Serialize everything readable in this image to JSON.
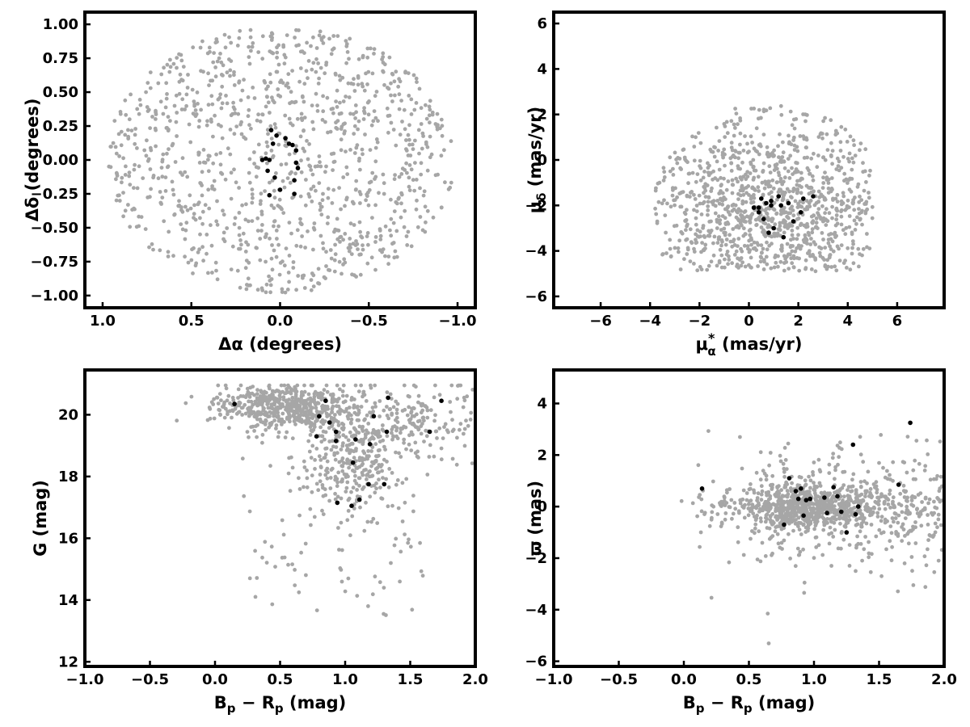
{
  "chart_data": [
    {
      "type": "scatter",
      "xlabel": "Δα (degrees)",
      "ylabel": "Δδ (degrees)",
      "xlim": [
        1.1,
        -1.1
      ],
      "ylim": [
        -1.09,
        1.09
      ],
      "x_ticks": [
        1.0,
        0.5,
        0.0,
        -0.5,
        -1.0
      ],
      "x_tick_labels": [
        "1.0",
        "0.5",
        "0.0",
        "−0.5",
        "−1.0"
      ],
      "y_ticks": [
        -1.0,
        -0.75,
        -0.5,
        -0.25,
        0.0,
        0.25,
        0.5,
        0.75,
        1.0
      ],
      "y_tick_labels": [
        "−1.00",
        "−0.75",
        "−0.50",
        "−0.25",
        "0.00",
        "0.25",
        "0.50",
        "0.75",
        "1.00"
      ],
      "grid": false,
      "colors": {
        "field": "#a6a6a6",
        "member": "#000000"
      },
      "field": {
        "distribution": "disk",
        "count": 1100,
        "cx": 0.0,
        "cy": 0.0,
        "radius": 0.98
      },
      "members": {
        "x": [
          0.05,
          0.02,
          0.04,
          -0.03,
          0.06,
          -0.05,
          -0.07,
          -0.09,
          -0.09,
          0.08,
          0.1,
          0.0,
          -0.08,
          0.03,
          -0.1,
          0.06,
          0.07,
          -0.08
        ],
        "y": [
          0.22,
          0.18,
          0.12,
          0.16,
          0.0,
          0.12,
          0.11,
          0.07,
          -0.02,
          0.01,
          0.0,
          -0.22,
          -0.15,
          -0.13,
          -0.06,
          -0.26,
          -0.08,
          -0.25
        ]
      }
    },
    {
      "type": "scatter",
      "xlabel": "μ*α (mas/yr)",
      "ylabel": "μδ (mas/yr)",
      "xlim": [
        -7.9,
        7.9
      ],
      "ylim": [
        -6.5,
        6.5
      ],
      "x_ticks": [
        -6,
        -4,
        -2,
        0,
        2,
        4,
        6
      ],
      "x_tick_labels": [
        "−6",
        "−4",
        "−2",
        "0",
        "2",
        "4",
        "6"
      ],
      "y_ticks": [
        -6,
        -4,
        -2,
        0,
        2,
        4,
        6
      ],
      "y_tick_labels": [
        "−6",
        "−4",
        "−2",
        "0",
        "2",
        "4",
        "6"
      ],
      "grid": false,
      "colors": {
        "field": "#a6a6a6",
        "member": "#000000"
      },
      "field": {
        "distribution": "clipped-blob",
        "count": 1100,
        "cx": 0.9,
        "cy": -2.3,
        "sx": 2.2,
        "sy": 1.9,
        "clip_radius": 4.8,
        "x_range": [
          -4.7,
          5.0
        ],
        "y_range": [
          -4.9,
          4.7
        ]
      },
      "members": {
        "x": [
          0.5,
          0.7,
          0.9,
          1.2,
          1.6,
          2.2,
          2.6,
          0.2,
          0.4,
          0.9,
          1.3,
          1.8,
          2.1,
          0.6,
          0.8,
          1.0,
          1.4,
          0.4
        ],
        "y": [
          -1.7,
          -1.9,
          -1.8,
          -1.6,
          -1.9,
          -1.7,
          -1.6,
          -2.1,
          -2.3,
          -2.0,
          -2.0,
          -2.7,
          -2.3,
          -2.6,
          -3.2,
          -3.0,
          -3.4,
          -2.1
        ]
      }
    },
    {
      "type": "scatter",
      "xlabel": "Bp − Rp (mag)",
      "ylabel": "G (mag)",
      "xlim": [
        -1.0,
        2.0
      ],
      "ylim": [
        11.85,
        21.45
      ],
      "x_ticks": [
        -1.0,
        -0.5,
        0.0,
        0.5,
        1.0,
        1.5,
        2.0
      ],
      "x_tick_labels": [
        "−1.0",
        "−0.5",
        "0.0",
        "0.5",
        "1.0",
        "1.5",
        "2.0"
      ],
      "y_ticks": [
        12,
        14,
        16,
        18,
        20
      ],
      "y_tick_labels": [
        "12",
        "14",
        "16",
        "18",
        "20"
      ],
      "grid": false,
      "colors": {
        "field": "#a6a6a6",
        "member": "#000000"
      },
      "field": {
        "distribution": "cmd",
        "count": 1100
      },
      "members": {
        "x": [
          0.15,
          0.85,
          1.33,
          1.74,
          0.8,
          1.22,
          0.88,
          0.93,
          1.32,
          0.78,
          0.93,
          1.08,
          1.19,
          1.65,
          1.06,
          1.18,
          1.3,
          1.11,
          0.94,
          1.05
        ],
        "y": [
          20.35,
          20.45,
          20.55,
          20.45,
          19.95,
          19.95,
          19.75,
          19.45,
          19.45,
          19.3,
          19.15,
          19.2,
          19.05,
          19.45,
          18.45,
          17.75,
          17.75,
          17.25,
          17.15,
          17.05
        ]
      }
    },
    {
      "type": "scatter",
      "xlabel": "Bp − Rp (mag)",
      "ylabel": "ϖ (mas)",
      "xlim": [
        -1.0,
        2.0
      ],
      "ylim": [
        -6.2,
        5.3
      ],
      "x_ticks": [
        -1.0,
        -0.5,
        0.0,
        0.5,
        1.0,
        1.5,
        2.0
      ],
      "x_tick_labels": [
        "−1.0",
        "−0.5",
        "0.0",
        "0.5",
        "1.0",
        "1.5",
        "2.0"
      ],
      "y_ticks": [
        -6,
        -4,
        -2,
        0,
        2,
        4
      ],
      "y_tick_labels": [
        "−6",
        "−4",
        "−2",
        "0",
        "2",
        "4"
      ],
      "grid": false,
      "colors": {
        "field": "#a6a6a6",
        "member": "#000000"
      },
      "field": {
        "distribution": "parallax",
        "count": 1100
      },
      "members": {
        "x": [
          0.14,
          0.77,
          0.81,
          0.86,
          0.88,
          0.9,
          0.92,
          0.94,
          1.08,
          1.1,
          1.15,
          1.18,
          1.21,
          1.25,
          1.3,
          1.32,
          1.34,
          1.65,
          1.74,
          0.97
        ],
        "y": [
          0.7,
          -0.7,
          1.1,
          0.6,
          0.3,
          0.7,
          -0.35,
          0.25,
          0.35,
          -0.25,
          0.75,
          0.4,
          -0.2,
          -1.0,
          2.4,
          -0.3,
          0.0,
          0.85,
          3.25,
          0.3
        ]
      }
    }
  ]
}
